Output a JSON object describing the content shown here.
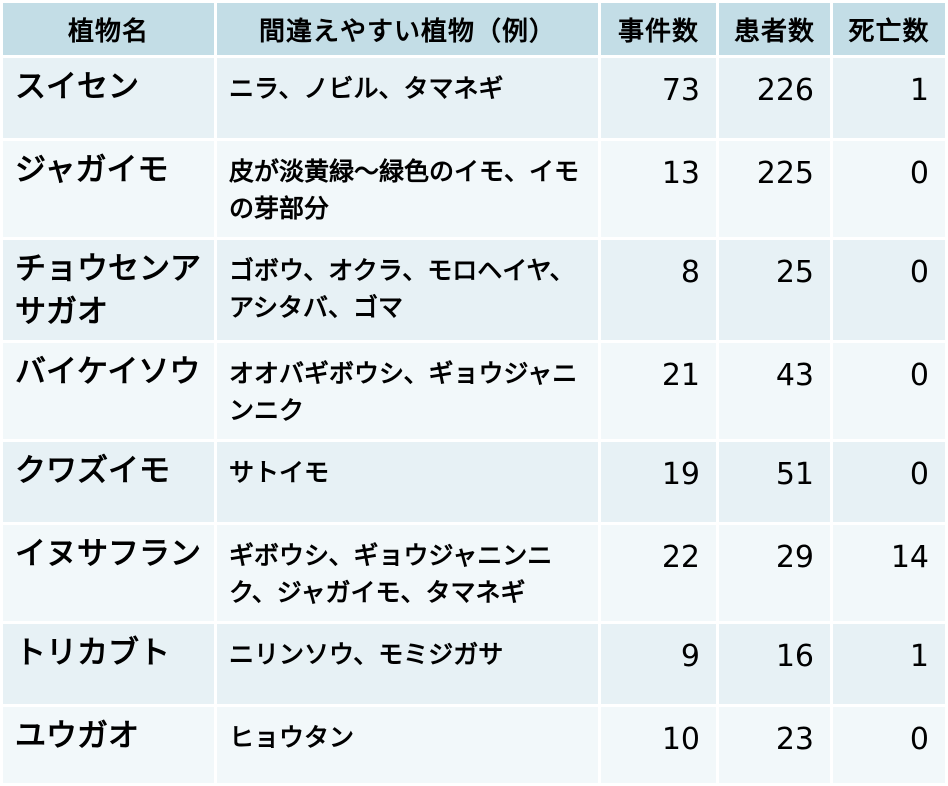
{
  "table": {
    "headers": {
      "name": "植物名",
      "mistaken": "間違えやすい植物（例）",
      "incidents": "事件数",
      "patients": "患者数",
      "deaths": "死亡数"
    },
    "rows": [
      {
        "name": "スイセン",
        "mistaken": "ニラ、ノビル、タマネギ",
        "incidents": "73",
        "patients": "226",
        "deaths": "1"
      },
      {
        "name": "ジャガイモ",
        "mistaken": "皮が淡黄緑～緑色のイモ、イモの芽部分",
        "incidents": "13",
        "patients": "225",
        "deaths": "0"
      },
      {
        "name": "チョウセンアサガオ",
        "mistaken": "ゴボウ、オクラ、モロヘイヤ、アシタバ、ゴマ",
        "incidents": "8",
        "patients": "25",
        "deaths": "0"
      },
      {
        "name": "バイケイソウ",
        "mistaken": "オオバギボウシ、ギョウジャニンニク",
        "incidents": "21",
        "patients": "43",
        "deaths": "0"
      },
      {
        "name": "クワズイモ",
        "mistaken": "サトイモ",
        "incidents": "19",
        "patients": "51",
        "deaths": "0"
      },
      {
        "name": "イヌサフラン",
        "mistaken": "ギボウシ、ギョウジャニンニク、ジャガイモ、タマネギ",
        "incidents": "22",
        "patients": "29",
        "deaths": "14"
      },
      {
        "name": "トリカブト",
        "mistaken": "ニリンソウ、モミジガサ",
        "incidents": "9",
        "patients": "16",
        "deaths": "1"
      },
      {
        "name": "ユウガオ",
        "mistaken": "ヒョウタン",
        "incidents": "10",
        "patients": "23",
        "deaths": "0"
      }
    ]
  },
  "colors": {
    "header_bg": "#c3dde6",
    "row_odd_bg": "#e7f1f5",
    "row_even_bg": "#f2f8fa",
    "text": "#000000"
  }
}
